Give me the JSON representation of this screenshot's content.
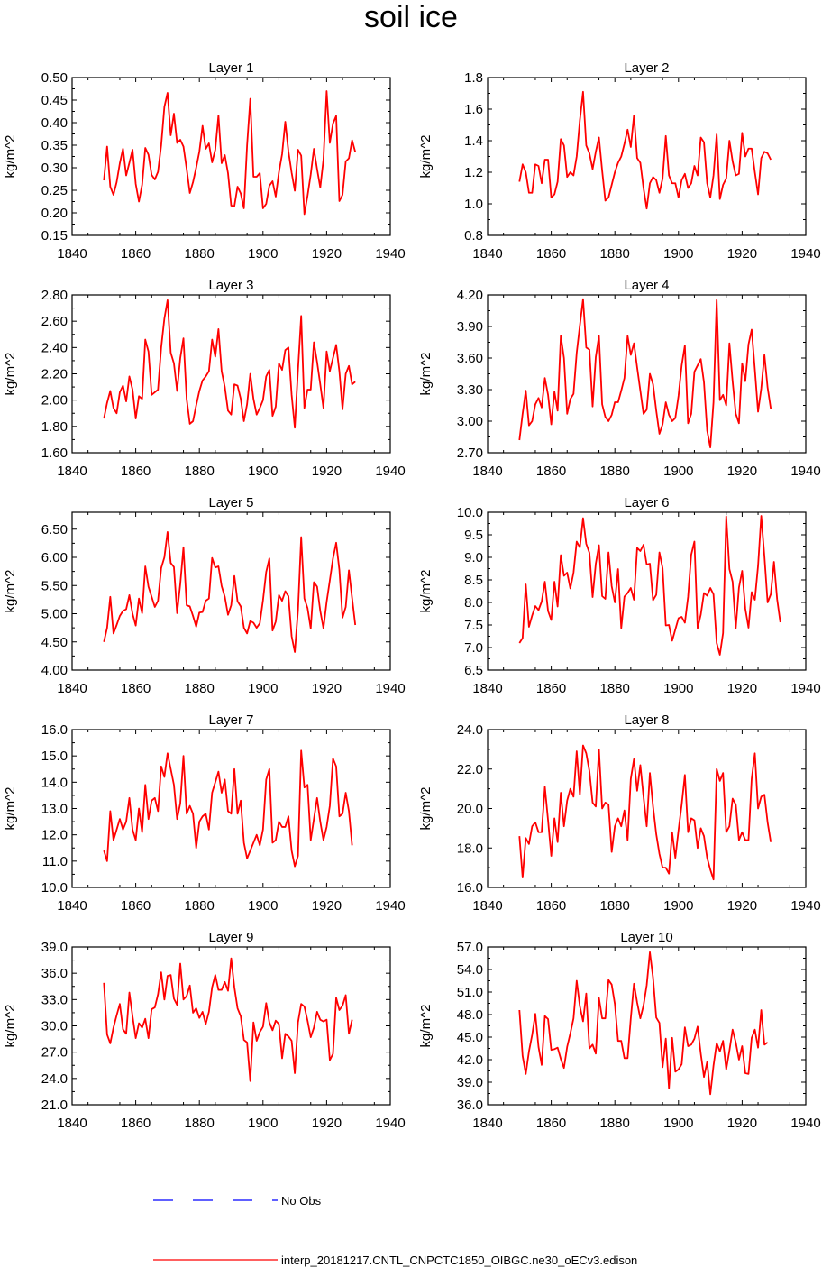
{
  "title": "soil ice",
  "colors": {
    "model_line": "#ff0000",
    "obs_line": "#0000ff",
    "frame": "#000000"
  },
  "legend": [
    {
      "label": "No Obs",
      "style": "dashed",
      "color": "#0000ff"
    },
    {
      "label": "interp_20181217.CNTL_CNPCTC1850_OIBGC.ne30_oECv3.edison",
      "style": "solid",
      "color": "#ff0000"
    }
  ],
  "chart_data": [
    {
      "type": "line",
      "title": "Layer 1",
      "ylabel": "kg/m^2",
      "xlim": [
        1840,
        1940
      ],
      "xticks": [
        "1840",
        "1860",
        "1880",
        "1900",
        "1920",
        "1940"
      ],
      "ylim": [
        0.15,
        0.5
      ],
      "yticks": [
        "0.15",
        "0.20",
        "0.25",
        "0.30",
        "0.35",
        "0.40",
        "0.45",
        "0.50"
      ],
      "x_start": 1850,
      "values": [
        0.272,
        0.347,
        0.258,
        0.24,
        0.268,
        0.31,
        0.342,
        0.283,
        0.311,
        0.34,
        0.264,
        0.225,
        0.262,
        0.344,
        0.329,
        0.284,
        0.274,
        0.291,
        0.35,
        0.435,
        0.466,
        0.372,
        0.42,
        0.355,
        0.362,
        0.347,
        0.298,
        0.244,
        0.268,
        0.3,
        0.336,
        0.393,
        0.342,
        0.354,
        0.312,
        0.34,
        0.416,
        0.31,
        0.328,
        0.288,
        0.216,
        0.215,
        0.258,
        0.243,
        0.21,
        0.35,
        0.453,
        0.28,
        0.28,
        0.288,
        0.21,
        0.22,
        0.26,
        0.27,
        0.236,
        0.29,
        0.33,
        0.402,
        0.336,
        0.289,
        0.249,
        0.34,
        0.327,
        0.197,
        0.238,
        0.285,
        0.342,
        0.297,
        0.256,
        0.318,
        0.47,
        0.355,
        0.398,
        0.415,
        0.226,
        0.24,
        0.314,
        0.321,
        0.361,
        0.335
      ]
    },
    {
      "type": "line",
      "title": "Layer 2",
      "ylabel": "kg/m^2",
      "xlim": [
        1840,
        1940
      ],
      "xticks": [
        "1840",
        "1860",
        "1880",
        "1900",
        "1920",
        "1940"
      ],
      "ylim": [
        0.8,
        1.8
      ],
      "yticks": [
        "0.8",
        "1.0",
        "1.2",
        "1.4",
        "1.6",
        "1.8"
      ],
      "x_start": 1850,
      "values": [
        1.14,
        1.25,
        1.2,
        1.07,
        1.07,
        1.25,
        1.24,
        1.13,
        1.28,
        1.28,
        1.04,
        1.06,
        1.14,
        1.41,
        1.37,
        1.17,
        1.2,
        1.18,
        1.3,
        1.53,
        1.71,
        1.37,
        1.32,
        1.22,
        1.33,
        1.42,
        1.21,
        1.02,
        1.04,
        1.12,
        1.2,
        1.26,
        1.3,
        1.38,
        1.47,
        1.36,
        1.56,
        1.29,
        1.26,
        1.1,
        0.97,
        1.13,
        1.17,
        1.15,
        1.07,
        1.16,
        1.43,
        1.18,
        1.13,
        1.13,
        1.04,
        1.15,
        1.19,
        1.1,
        1.13,
        1.24,
        1.18,
        1.42,
        1.39,
        1.13,
        1.04,
        1.18,
        1.44,
        1.03,
        1.12,
        1.16,
        1.4,
        1.27,
        1.18,
        1.19,
        1.45,
        1.3,
        1.35,
        1.35,
        1.2,
        1.06,
        1.29,
        1.33,
        1.32,
        1.28
      ]
    },
    {
      "type": "line",
      "title": "Layer 3",
      "ylabel": "kg/m^2",
      "xlim": [
        1840,
        1940
      ],
      "xticks": [
        "1840",
        "1860",
        "1880",
        "1900",
        "1920",
        "1940"
      ],
      "ylim": [
        1.6,
        2.8
      ],
      "yticks": [
        "1.60",
        "1.80",
        "2.00",
        "2.20",
        "2.40",
        "2.60",
        "2.80"
      ],
      "x_start": 1850,
      "values": [
        1.86,
        1.98,
        2.07,
        1.94,
        1.9,
        2.06,
        2.11,
        1.99,
        2.18,
        2.08,
        1.86,
        2.03,
        2.01,
        2.46,
        2.37,
        2.04,
        2.06,
        2.08,
        2.4,
        2.62,
        2.76,
        2.36,
        2.28,
        2.07,
        2.32,
        2.47,
        2.01,
        1.82,
        1.84,
        1.96,
        2.07,
        2.15,
        2.18,
        2.22,
        2.46,
        2.33,
        2.54,
        2.22,
        2.1,
        1.92,
        1.89,
        2.12,
        2.11,
        2.01,
        1.84,
        1.97,
        2.2,
        2.01,
        1.89,
        1.94,
        2.0,
        2.18,
        2.23,
        1.88,
        1.95,
        2.28,
        2.23,
        2.38,
        2.4,
        2.04,
        1.79,
        2.23,
        2.64,
        1.94,
        2.08,
        2.08,
        2.44,
        2.29,
        2.12,
        1.94,
        2.37,
        2.22,
        2.32,
        2.42,
        2.22,
        1.93,
        2.2,
        2.26,
        2.12,
        2.14
      ]
    },
    {
      "type": "line",
      "title": "Layer 4",
      "ylabel": "kg/m^2",
      "xlim": [
        1840,
        1940
      ],
      "xticks": [
        "1840",
        "1860",
        "1880",
        "1900",
        "1920",
        "1940"
      ],
      "ylim": [
        2.7,
        4.2
      ],
      "yticks": [
        "2.70",
        "3.00",
        "3.30",
        "3.60",
        "3.90",
        "4.20"
      ],
      "x_start": 1850,
      "values": [
        2.82,
        3.07,
        3.29,
        2.96,
        3.0,
        3.16,
        3.22,
        3.13,
        3.41,
        3.25,
        2.97,
        3.28,
        3.1,
        3.81,
        3.6,
        3.07,
        3.21,
        3.26,
        3.65,
        3.91,
        4.16,
        3.7,
        3.68,
        3.14,
        3.61,
        3.81,
        3.16,
        3.04,
        3.0,
        3.06,
        3.18,
        3.18,
        3.29,
        3.41,
        3.81,
        3.63,
        3.74,
        3.51,
        3.29,
        3.07,
        3.11,
        3.45,
        3.35,
        3.1,
        2.88,
        2.97,
        3.18,
        3.06,
        3.0,
        3.03,
        3.24,
        3.53,
        3.72,
        2.98,
        3.07,
        3.47,
        3.53,
        3.59,
        3.37,
        2.91,
        2.75,
        3.18,
        4.15,
        3.2,
        3.25,
        3.15,
        3.74,
        3.38,
        3.07,
        2.98,
        3.55,
        3.38,
        3.73,
        3.87,
        3.49,
        3.09,
        3.31,
        3.63,
        3.32,
        3.12
      ]
    },
    {
      "type": "line",
      "title": "Layer 5",
      "ylabel": "kg/m^2",
      "xlim": [
        1840,
        1940
      ],
      "xticks": [
        "1840",
        "1860",
        "1880",
        "1900",
        "1920",
        "1940"
      ],
      "ylim": [
        4.0,
        6.8
      ],
      "yticks": [
        "4.00",
        "4.50",
        "5.00",
        "5.50",
        "6.00",
        "6.50"
      ],
      "x_start": 1850,
      "values": [
        4.5,
        4.75,
        5.3,
        4.65,
        4.8,
        4.96,
        5.05,
        5.08,
        5.33,
        5.0,
        4.79,
        5.27,
        5.01,
        5.84,
        5.48,
        5.3,
        5.12,
        5.23,
        5.81,
        6.0,
        6.45,
        5.9,
        5.83,
        5.01,
        5.53,
        6.18,
        5.15,
        5.13,
        4.96,
        4.77,
        5.02,
        5.03,
        5.23,
        5.27,
        5.99,
        5.82,
        5.84,
        5.49,
        5.3,
        4.98,
        5.15,
        5.67,
        5.22,
        5.13,
        4.75,
        4.65,
        4.87,
        4.84,
        4.75,
        4.83,
        5.24,
        5.74,
        5.98,
        4.7,
        4.86,
        5.33,
        5.23,
        5.4,
        5.31,
        4.6,
        4.32,
        5.06,
        6.36,
        5.27,
        5.1,
        4.74,
        5.56,
        5.48,
        5.05,
        4.74,
        5.21,
        5.59,
        5.98,
        6.26,
        5.78,
        4.93,
        5.12,
        5.77,
        5.28,
        4.8
      ]
    },
    {
      "type": "line",
      "title": "Layer 6",
      "ylabel": "kg/m^2",
      "xlim": [
        1840,
        1940
      ],
      "xticks": [
        "1840",
        "1860",
        "1880",
        "1900",
        "1920",
        "1940"
      ],
      "ylim": [
        6.5,
        10.0
      ],
      "yticks": [
        "6.5",
        "7.0",
        "7.5",
        "8.0",
        "8.5",
        "9.0",
        "9.5",
        "10.0"
      ],
      "x_start": 1850,
      "values": [
        7.1,
        7.21,
        8.4,
        7.46,
        7.71,
        7.92,
        7.83,
        8.02,
        8.46,
        7.81,
        7.61,
        8.46,
        7.91,
        9.05,
        8.59,
        8.66,
        8.31,
        8.66,
        9.35,
        9.22,
        9.87,
        9.3,
        9.1,
        8.12,
        8.86,
        9.27,
        8.14,
        8.08,
        9.11,
        8.36,
        8.0,
        8.74,
        7.43,
        8.13,
        8.21,
        8.32,
        8.06,
        9.21,
        9.14,
        9.28,
        8.84,
        8.86,
        8.05,
        8.17,
        9.11,
        8.76,
        7.49,
        7.5,
        7.15,
        7.4,
        7.65,
        7.68,
        7.55,
        8.12,
        9.06,
        9.35,
        7.43,
        7.73,
        8.21,
        8.15,
        8.32,
        8.18,
        7.1,
        6.84,
        7.32,
        9.91,
        8.74,
        8.46,
        7.43,
        8.33,
        8.7,
        7.86,
        7.44,
        8.23,
        8.06,
        8.81,
        9.92,
        9.02,
        8.0,
        8.18,
        8.9,
        8.07,
        7.56
      ]
    },
    {
      "type": "line",
      "title": "Layer 7",
      "ylabel": "kg/m^2",
      "xlim": [
        1840,
        1940
      ],
      "xticks": [
        "1840",
        "1860",
        "1880",
        "1900",
        "1920",
        "1940"
      ],
      "ylim": [
        10.0,
        16.0
      ],
      "yticks": [
        "10.0",
        "11.0",
        "12.0",
        "13.0",
        "14.0",
        "15.0",
        "16.0"
      ],
      "x_start": 1850,
      "values": [
        11.4,
        11.0,
        12.9,
        11.8,
        12.2,
        12.6,
        12.2,
        12.5,
        13.4,
        12.2,
        11.8,
        13.0,
        12.1,
        13.9,
        12.6,
        13.3,
        13.4,
        12.9,
        14.6,
        14.2,
        15.1,
        14.5,
        13.9,
        12.6,
        13.2,
        15.0,
        12.8,
        13.1,
        12.8,
        11.5,
        12.5,
        12.7,
        12.8,
        12.2,
        13.6,
        14.0,
        14.4,
        13.6,
        14.1,
        12.9,
        12.8,
        14.5,
        12.8,
        13.3,
        11.7,
        11.1,
        11.4,
        11.7,
        12.0,
        11.6,
        12.2,
        14.1,
        14.5,
        11.7,
        11.8,
        12.5,
        12.3,
        12.3,
        12.7,
        11.4,
        10.8,
        11.2,
        15.2,
        13.8,
        13.9,
        11.8,
        12.6,
        13.4,
        12.5,
        11.8,
        12.3,
        13.1,
        14.9,
        14.6,
        12.7,
        12.8,
        13.6,
        12.9,
        11.6
      ]
    },
    {
      "type": "line",
      "title": "Layer 8",
      "ylabel": "kg/m^2",
      "xlim": [
        1840,
        1940
      ],
      "xticks": [
        "1840",
        "1860",
        "1880",
        "1900",
        "1920",
        "1940"
      ],
      "ylim": [
        16.0,
        24.0
      ],
      "yticks": [
        "16.0",
        "18.0",
        "20.0",
        "22.0",
        "24.0"
      ],
      "x_start": 1850,
      "values": [
        18.6,
        16.5,
        18.5,
        18.2,
        19.1,
        19.3,
        18.8,
        18.8,
        21.1,
        19.4,
        17.6,
        19.5,
        18.3,
        20.8,
        19.1,
        20.4,
        21.0,
        20.6,
        22.9,
        20.7,
        23.2,
        22.8,
        21.9,
        20.3,
        20.1,
        23.0,
        20.0,
        20.3,
        20.2,
        17.8,
        19.1,
        19.5,
        19.1,
        19.9,
        18.4,
        21.5,
        22.5,
        20.9,
        22.2,
        20.6,
        19.1,
        21.8,
        20.1,
        18.7,
        17.7,
        17.0,
        17.0,
        16.7,
        18.8,
        17.5,
        18.9,
        20.2,
        21.7,
        18.8,
        19.5,
        19.4,
        18.0,
        19.0,
        18.6,
        17.5,
        16.9,
        16.4,
        22.0,
        21.4,
        21.8,
        18.8,
        19.1,
        20.5,
        20.2,
        18.4,
        18.8,
        18.4,
        18.4,
        21.5,
        22.8,
        20.0,
        20.6,
        20.7,
        19.3,
        18.3
      ]
    },
    {
      "type": "line",
      "title": "Layer 9",
      "ylabel": "kg/m^2",
      "xlim": [
        1840,
        1940
      ],
      "xticks": [
        "1840",
        "1860",
        "1880",
        "1900",
        "1920",
        "1940"
      ],
      "ylim": [
        21.0,
        39.0
      ],
      "yticks": [
        "21.0",
        "24.0",
        "27.0",
        "30.0",
        "33.0",
        "36.0",
        "39.0"
      ],
      "x_start": 1850,
      "values": [
        34.9,
        29.0,
        28.0,
        29.8,
        31.2,
        32.5,
        29.6,
        29.1,
        33.8,
        31.1,
        28.6,
        30.3,
        29.8,
        30.8,
        28.6,
        31.9,
        32.1,
        33.6,
        36.1,
        33.0,
        35.7,
        35.8,
        33.1,
        32.4,
        37.1,
        33.0,
        33.4,
        34.6,
        31.5,
        32.0,
        30.9,
        31.6,
        30.2,
        31.6,
        34.4,
        35.8,
        34.1,
        34.1,
        35.0,
        34.0,
        37.7,
        34.4,
        32.0,
        31.1,
        28.4,
        28.1,
        23.7,
        30.4,
        28.3,
        29.3,
        29.9,
        32.6,
        30.4,
        29.5,
        30.6,
        30.2,
        26.3,
        29.1,
        28.8,
        28.3,
        24.6,
        30.4,
        32.5,
        32.2,
        30.6,
        28.7,
        29.8,
        31.6,
        30.7,
        30.5,
        30.7,
        26.1,
        26.8,
        33.2,
        31.8,
        32.3,
        33.5,
        29.1,
        30.7
      ]
    },
    {
      "type": "line",
      "title": "Layer 10",
      "ylabel": "kg/m^2",
      "xlim": [
        1840,
        1940
      ],
      "xticks": [
        "1840",
        "1860",
        "1880",
        "1900",
        "1920",
        "1940"
      ],
      "ylim": [
        36.0,
        57.0
      ],
      "yticks": [
        "36.0",
        "39.0",
        "42.0",
        "45.0",
        "48.0",
        "51.0",
        "54.0",
        "57.0"
      ],
      "x_start": 1850,
      "values": [
        48.6,
        42.5,
        40.1,
        43.1,
        45.3,
        48.1,
        43.7,
        41.3,
        47.8,
        47.4,
        43.3,
        43.4,
        43.6,
        42.1,
        40.9,
        43.7,
        45.5,
        47.5,
        52.5,
        49.1,
        47.1,
        50.8,
        43.5,
        44.0,
        42.8,
        50.2,
        47.5,
        47.5,
        52.6,
        52.0,
        49.4,
        44.5,
        44.5,
        42.2,
        42.2,
        47.5,
        52.1,
        49.6,
        47.5,
        49.2,
        51.9,
        56.3,
        52.9,
        47.6,
        46.9,
        41.0,
        44.8,
        38.2,
        44.9,
        40.4,
        40.7,
        41.4,
        46.3,
        43.8,
        44.0,
        44.8,
        46.4,
        42.8,
        39.7,
        41.7,
        37.4,
        41.2,
        44.2,
        43.1,
        44.5,
        40.7,
        43.2,
        46.0,
        44.3,
        42.0,
        43.8,
        40.2,
        40.1,
        44.9,
        46.0,
        43.6,
        48.6,
        44.0,
        44.3
      ]
    }
  ]
}
